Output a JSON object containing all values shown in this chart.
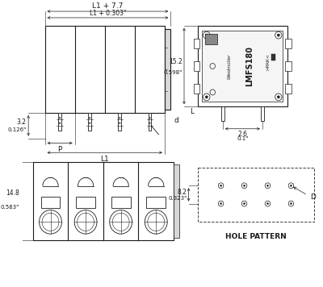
{
  "bg_color": "#ffffff",
  "line_color": "#1a1a1a",
  "gray_fill": "#d8d8d8",
  "light_fill": "#f5f5f5",
  "font_size_tiny": 5.0,
  "font_size_small": 5.5,
  "font_size_med": 6.5,
  "label_top1": "L1 + 7.7",
  "label_top2": "L1 + 0.303\"",
  "label_3p2": "3.2",
  "label_0126": "0.126\"",
  "label_P": "P",
  "label_L1": "L1",
  "label_d": "d",
  "label_152": "15.2",
  "label_0598": "0.598\"",
  "label_26": "2.6",
  "label_01": "0.1\"",
  "label_L": "L",
  "label_LMFS": "LMFS180",
  "label_weid": "Weidmüller",
  "label_pak": ">PAK<",
  "label_148": "14.8",
  "label_0583": "0.583\"",
  "label_82": "8.2",
  "label_0323": "0.323\"",
  "label_D": "D",
  "label_hole": "HOLE PATTERN",
  "n_slots": 4
}
